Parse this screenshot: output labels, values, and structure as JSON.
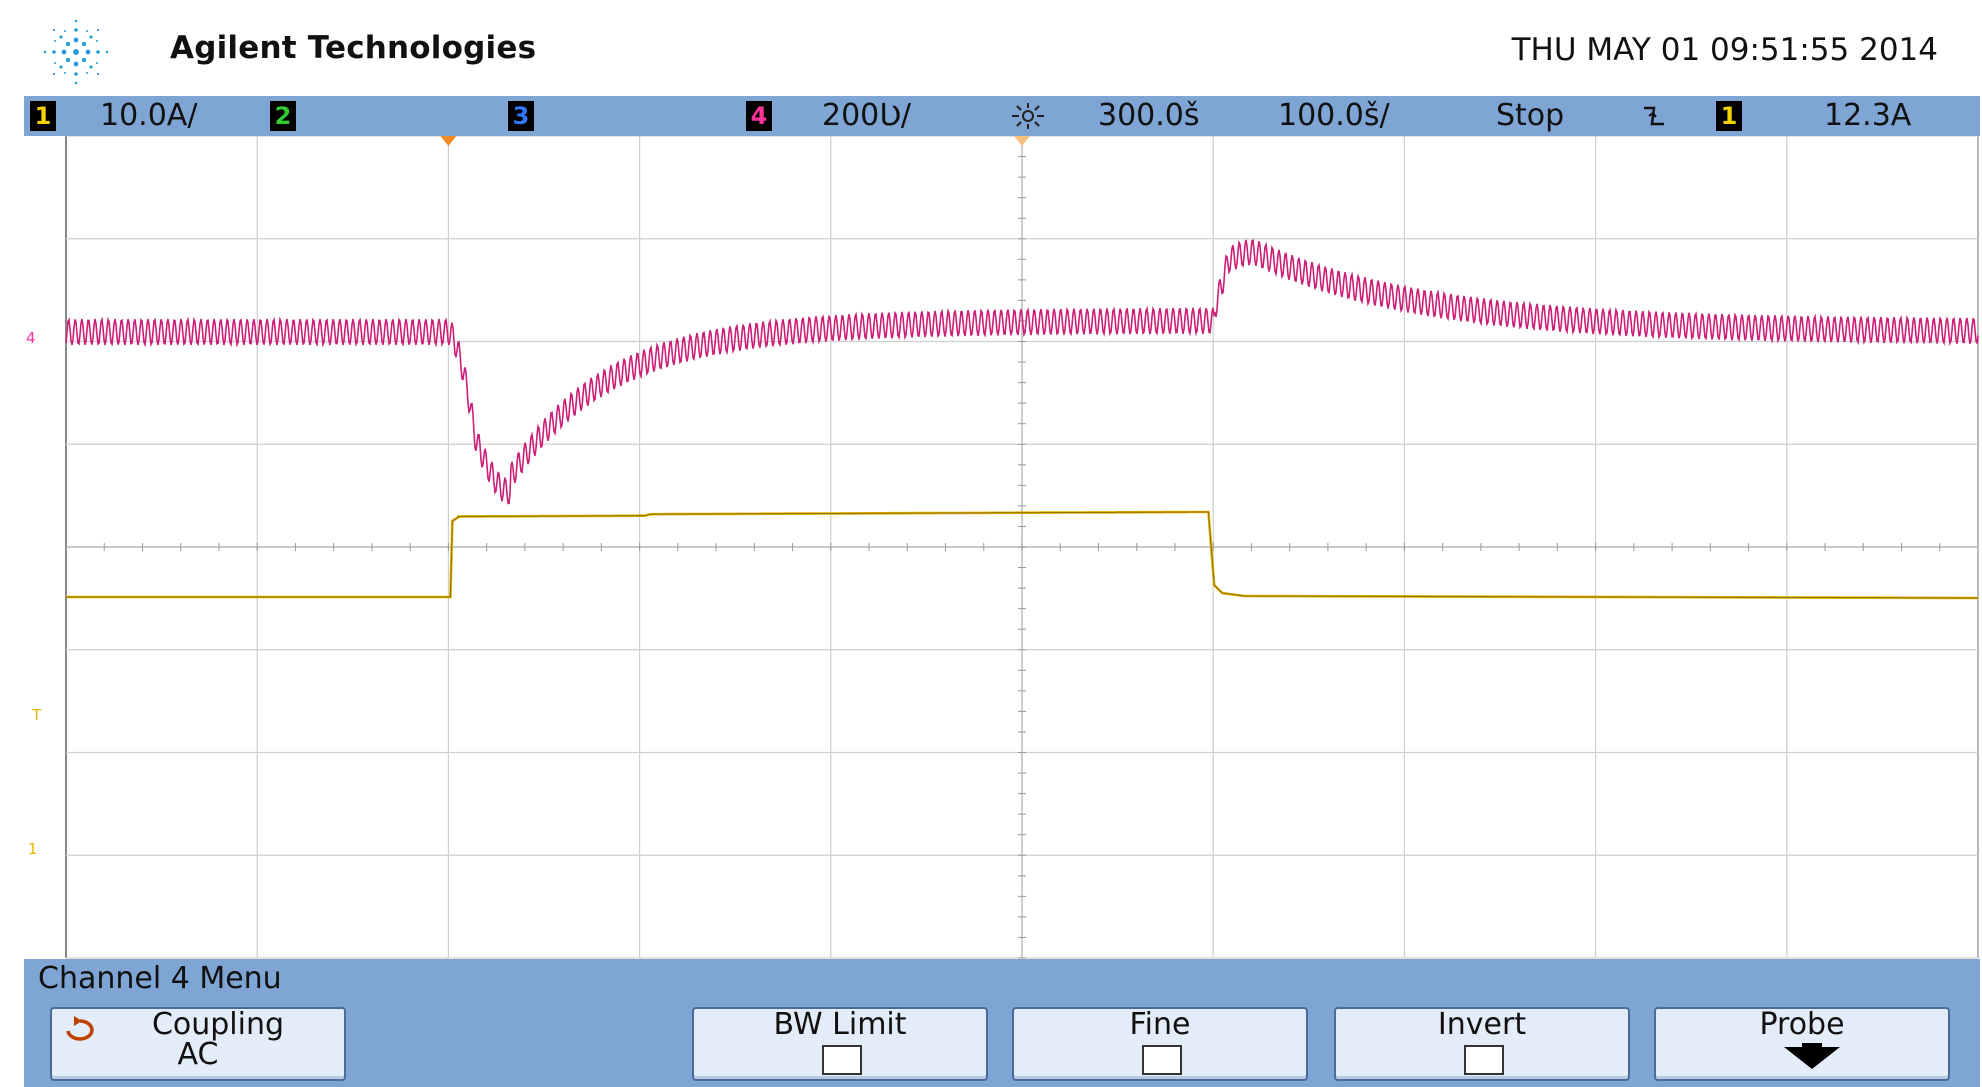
{
  "header": {
    "brand": "Agilent Technologies",
    "datetime": "THU MAY 01 09:51:55 2014",
    "logo_icon": "agilent-spark-logo"
  },
  "status_bar": {
    "ch1_num": "1",
    "ch1_scale": "10.0A/",
    "ch2_num": "2",
    "ch3_num": "3",
    "ch4_num": "4",
    "ch4_scale": "200Ʋ/",
    "delay_icon": "sun-icon",
    "delay": "300.0š",
    "timebase": "100.0š/",
    "run_state": "Stop",
    "trigger_icon": "falling-edge-icon",
    "trigger_src": "1",
    "trigger_level": "12.3A",
    "colors": {
      "ch1": "#f5d300",
      "ch2": "#33cc33",
      "ch3": "#3377ff",
      "ch4": "#ff3399"
    }
  },
  "scope": {
    "markers": {
      "ch4_ground": "4",
      "trigger": "T",
      "ch1_ground": "1"
    },
    "trace_colors": {
      "ch4": "#cc1f77",
      "ch1": "#e8b400"
    }
  },
  "menu": {
    "title": "Channel 4 Menu",
    "coupling_label": "Coupling",
    "coupling_value": "AC",
    "coupling_icon": "rotate-arrow-icon",
    "bw_limit_label": "BW Limit",
    "fine_label": "Fine",
    "invert_label": "Invert",
    "probe_label": "Probe",
    "probe_icon": "down-arrow-icon"
  }
}
